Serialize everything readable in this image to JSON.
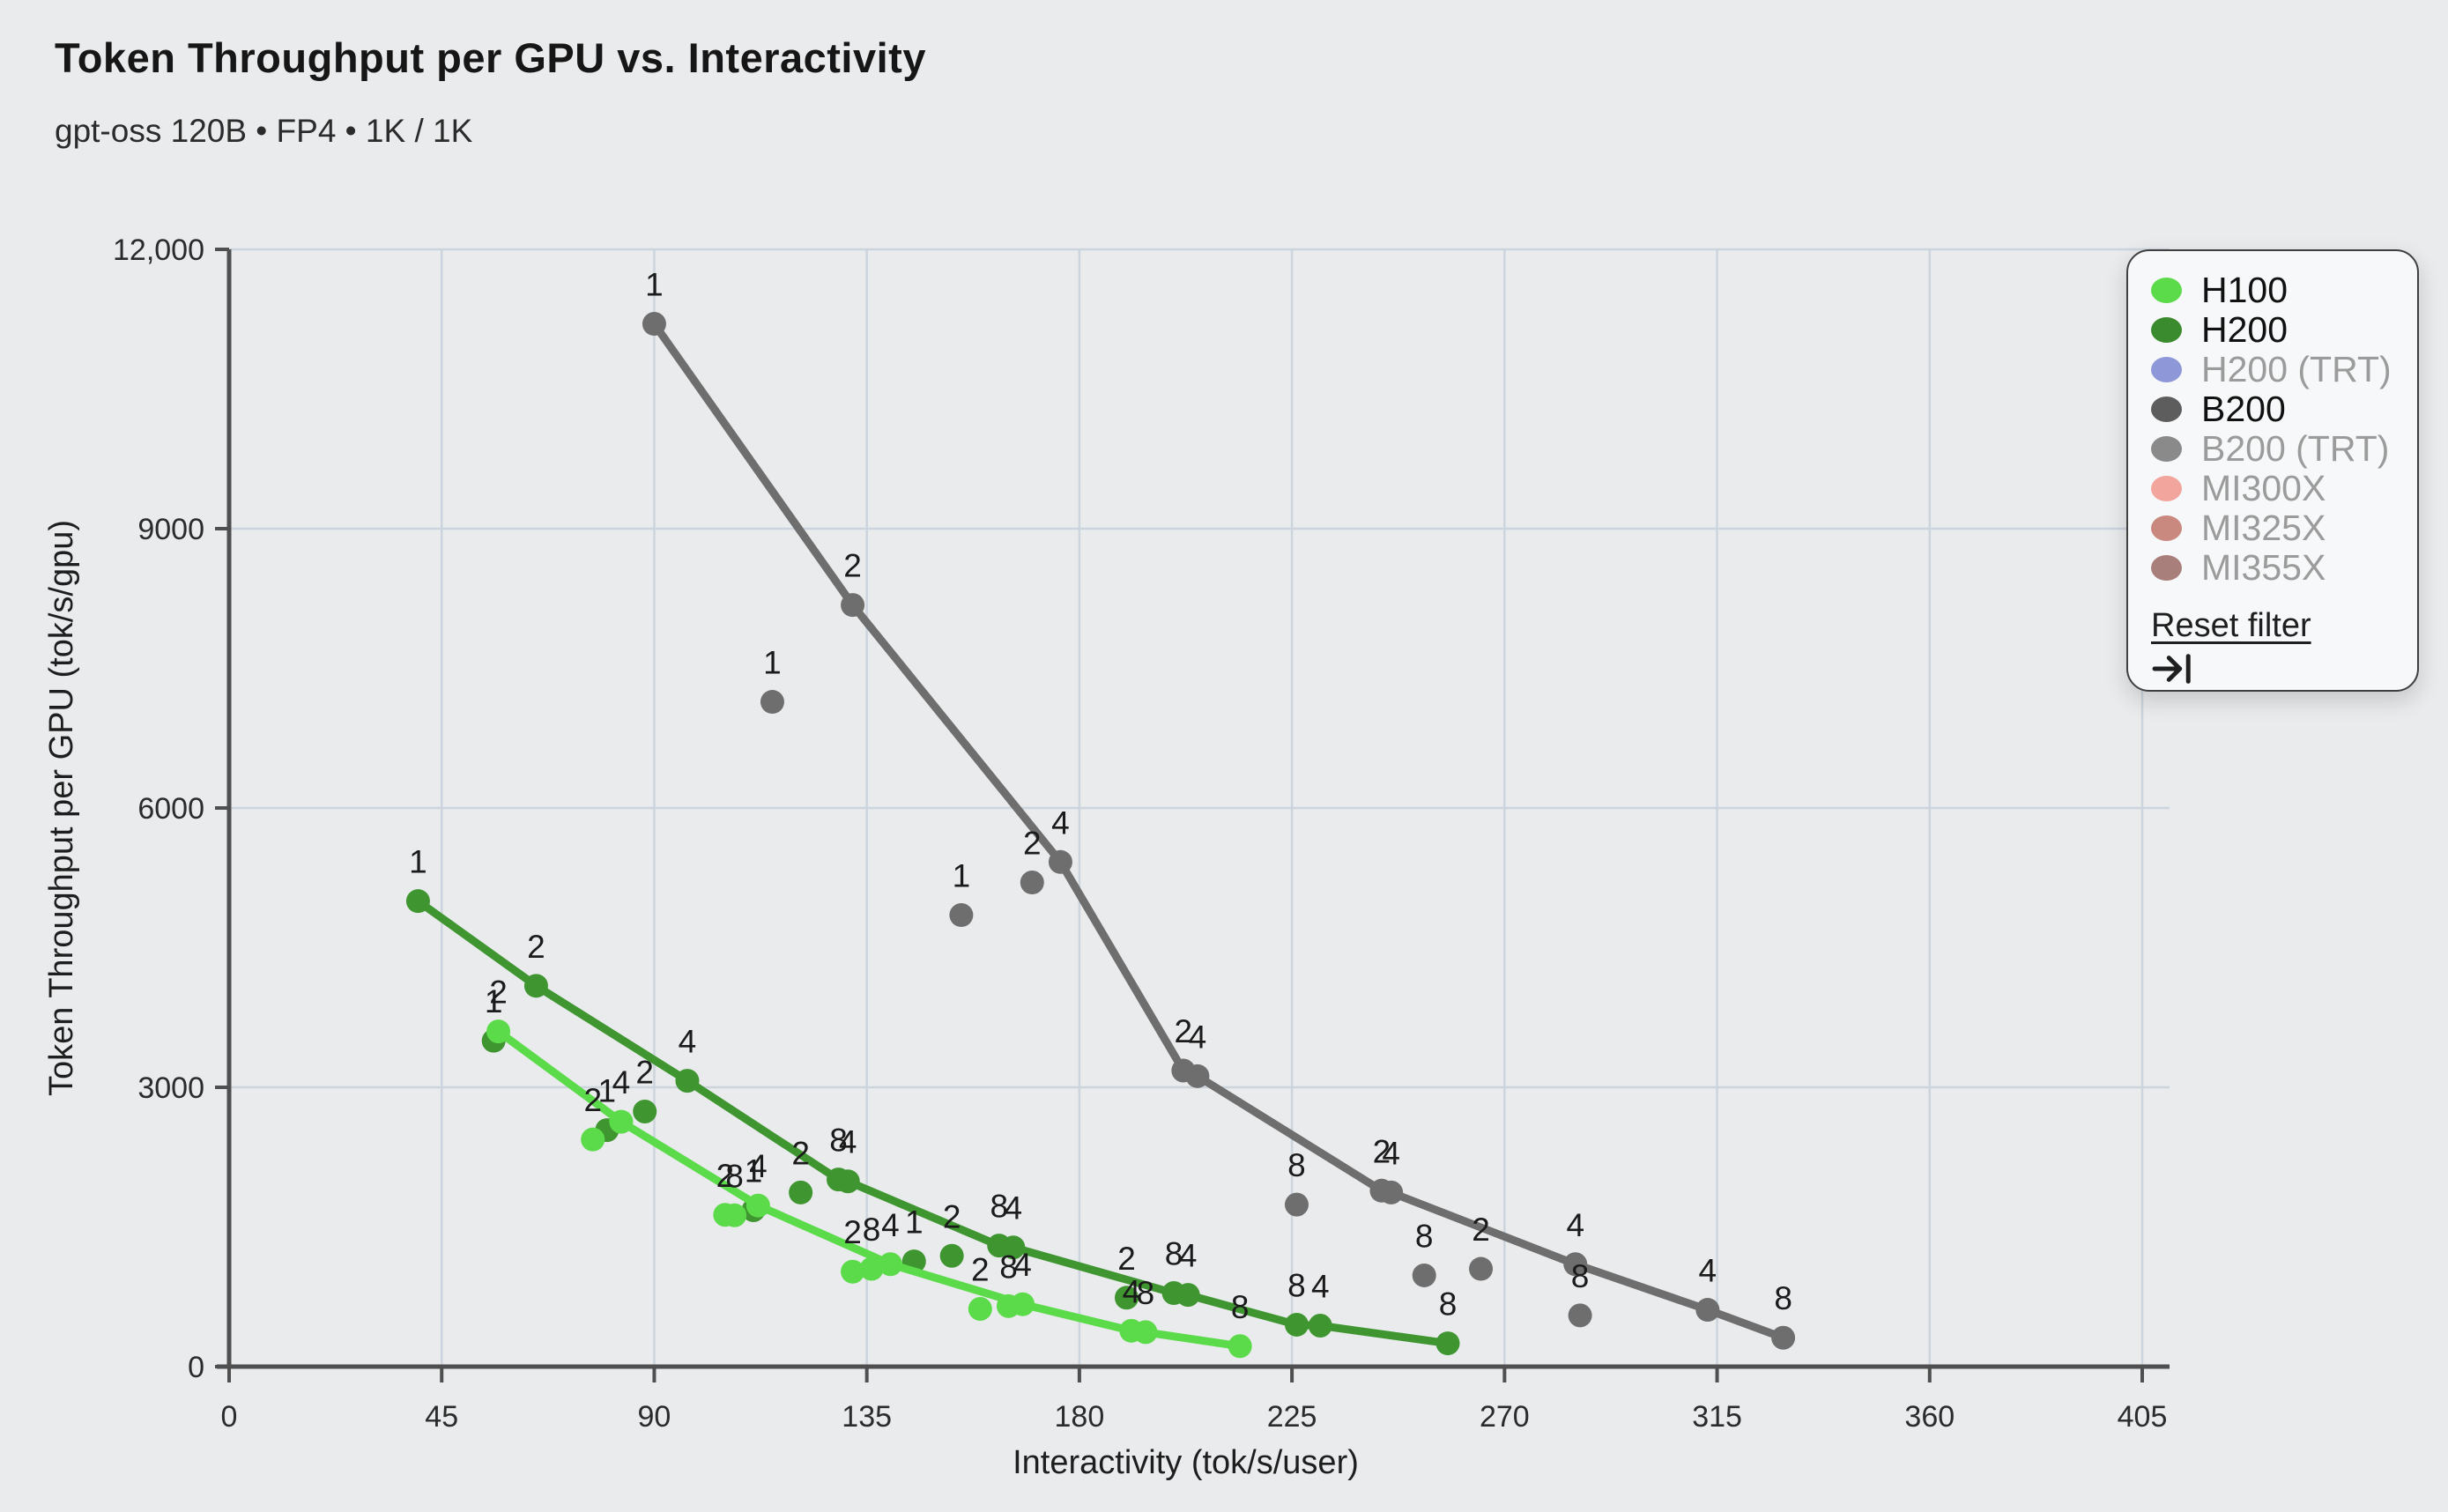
{
  "header": {
    "title": "Token Throughput per GPU vs. Interactivity",
    "subtitle": "gpt-oss 120B • FP4 • 1K / 1K"
  },
  "colors": {
    "background": "#e9ebed",
    "grid": "#ccd5de",
    "axis": "#4f4f4f",
    "tick_text": "#2b2b2b",
    "point_label": "#1b1b1b"
  },
  "legend": {
    "items": [
      {
        "label": "H100",
        "color": "#5cdb4a",
        "active": true
      },
      {
        "label": "H200",
        "color": "#3a8a2e",
        "active": true
      },
      {
        "label": "H200 (TRT)",
        "color": "#8e98d9",
        "active": false
      },
      {
        "label": "B200",
        "color": "#5d5d5d",
        "active": true
      },
      {
        "label": "B200 (TRT)",
        "color": "#8a8a8a",
        "active": false
      },
      {
        "label": "MI300X",
        "color": "#f2a59d",
        "active": false
      },
      {
        "label": "MI325X",
        "color": "#c9897f",
        "active": false
      },
      {
        "label": "MI355X",
        "color": "#a97f7b",
        "active": false
      }
    ],
    "reset_label": "Reset filter",
    "reset_icon": "arrow-bar-right-icon"
  },
  "chart_data": {
    "type": "scatter",
    "title": "Token Throughput per GPU vs. Interactivity",
    "xlabel": "Interactivity (tok/s/user)",
    "ylabel": "Token Throughput per GPU (tok/s/gpu)",
    "xlim": [
      0,
      405
    ],
    "ylim": [
      0,
      12000
    ],
    "xticks": [
      0,
      45,
      90,
      135,
      180,
      225,
      270,
      315,
      360,
      405
    ],
    "yticks": [
      0,
      3000,
      6000,
      9000,
      12000
    ],
    "ytick_labels": [
      "0",
      "3000",
      "6000",
      "9000",
      "12,000"
    ],
    "grid": true,
    "legend_position": "top-right",
    "series": [
      {
        "name": "B200",
        "color": "#6e6e6e",
        "line": [
          [
            90,
            11200
          ],
          [
            132,
            8180
          ],
          [
            176,
            5420
          ],
          [
            202,
            3180
          ],
          [
            205,
            3120
          ],
          [
            244,
            1890
          ],
          [
            246,
            1870
          ],
          [
            285,
            1100
          ],
          [
            313,
            610
          ],
          [
            329,
            310
          ]
        ],
        "points": [
          {
            "x": 90,
            "y": 11200,
            "label": "1"
          },
          {
            "x": 115,
            "y": 7140,
            "label": "1"
          },
          {
            "x": 132,
            "y": 8180,
            "label": "2"
          },
          {
            "x": 155,
            "y": 4850,
            "label": "1"
          },
          {
            "x": 170,
            "y": 5200,
            "label": "2"
          },
          {
            "x": 176,
            "y": 5420,
            "label": "4"
          },
          {
            "x": 202,
            "y": 3180,
            "label": "2"
          },
          {
            "x": 205,
            "y": 3120,
            "label": "4"
          },
          {
            "x": 226,
            "y": 1740,
            "label": "8"
          },
          {
            "x": 244,
            "y": 1890,
            "label": "2"
          },
          {
            "x": 246,
            "y": 1870,
            "label": "4"
          },
          {
            "x": 253,
            "y": 980,
            "label": "8"
          },
          {
            "x": 265,
            "y": 1050,
            "label": "2"
          },
          {
            "x": 285,
            "y": 1100,
            "label": "4"
          },
          {
            "x": 286,
            "y": 550,
            "label": "8"
          },
          {
            "x": 313,
            "y": 610,
            "label": "4"
          },
          {
            "x": 329,
            "y": 310,
            "label": "8"
          }
        ]
      },
      {
        "name": "H200",
        "color": "#3f9630",
        "line": [
          [
            40,
            5000
          ],
          [
            65,
            4090
          ],
          [
            97,
            3070
          ],
          [
            129,
            2010
          ],
          [
            131,
            1990
          ],
          [
            163,
            1300
          ],
          [
            166,
            1280
          ],
          [
            200,
            790
          ],
          [
            203,
            770
          ],
          [
            226,
            450
          ],
          [
            231,
            440
          ],
          [
            258,
            250
          ]
        ],
        "points": [
          {
            "x": 40,
            "y": 5000,
            "label": "1"
          },
          {
            "x": 56,
            "y": 3500,
            "label": "1"
          },
          {
            "x": 65,
            "y": 4090,
            "label": "2"
          },
          {
            "x": 80,
            "y": 2540,
            "label": "1"
          },
          {
            "x": 88,
            "y": 2740,
            "label": "2"
          },
          {
            "x": 97,
            "y": 3070,
            "label": "4"
          },
          {
            "x": 111,
            "y": 1680,
            "label": "1"
          },
          {
            "x": 121,
            "y": 1870,
            "label": "2"
          },
          {
            "x": 129,
            "y": 2010,
            "label": "8"
          },
          {
            "x": 131,
            "y": 1990,
            "label": "4"
          },
          {
            "x": 145,
            "y": 1130,
            "label": "1"
          },
          {
            "x": 153,
            "y": 1190,
            "label": "2"
          },
          {
            "x": 163,
            "y": 1300,
            "label": "8"
          },
          {
            "x": 166,
            "y": 1280,
            "label": "4"
          },
          {
            "x": 190,
            "y": 740,
            "label": "2"
          },
          {
            "x": 200,
            "y": 790,
            "label": "8"
          },
          {
            "x": 203,
            "y": 770,
            "label": "4"
          },
          {
            "x": 226,
            "y": 450,
            "label": "8"
          },
          {
            "x": 231,
            "y": 440,
            "label": "4"
          },
          {
            "x": 258,
            "y": 250,
            "label": "8"
          }
        ]
      },
      {
        "name": "H100",
        "color": "#5cdb4a",
        "line": [
          [
            57,
            3600
          ],
          [
            83,
            2630
          ],
          [
            112,
            1730
          ],
          [
            140,
            1100
          ],
          [
            168,
            670
          ],
          [
            191,
            385
          ],
          [
            194,
            370
          ],
          [
            214,
            220
          ]
        ],
        "points": [
          {
            "x": 57,
            "y": 3600,
            "label": "2"
          },
          {
            "x": 77,
            "y": 2440,
            "label": "2"
          },
          {
            "x": 83,
            "y": 2630,
            "label": "4"
          },
          {
            "x": 105,
            "y": 1630,
            "label": "2"
          },
          {
            "x": 107,
            "y": 1625,
            "label": "8"
          },
          {
            "x": 112,
            "y": 1730,
            "label": "4"
          },
          {
            "x": 132,
            "y": 1020,
            "label": "2"
          },
          {
            "x": 136,
            "y": 1050,
            "label": "8"
          },
          {
            "x": 140,
            "y": 1100,
            "label": "4"
          },
          {
            "x": 159,
            "y": 620,
            "label": "2"
          },
          {
            "x": 165,
            "y": 650,
            "label": "8"
          },
          {
            "x": 168,
            "y": 670,
            "label": "4"
          },
          {
            "x": 191,
            "y": 385,
            "label": "4"
          },
          {
            "x": 194,
            "y": 370,
            "label": "8"
          },
          {
            "x": 214,
            "y": 220,
            "label": "8"
          }
        ]
      }
    ]
  }
}
